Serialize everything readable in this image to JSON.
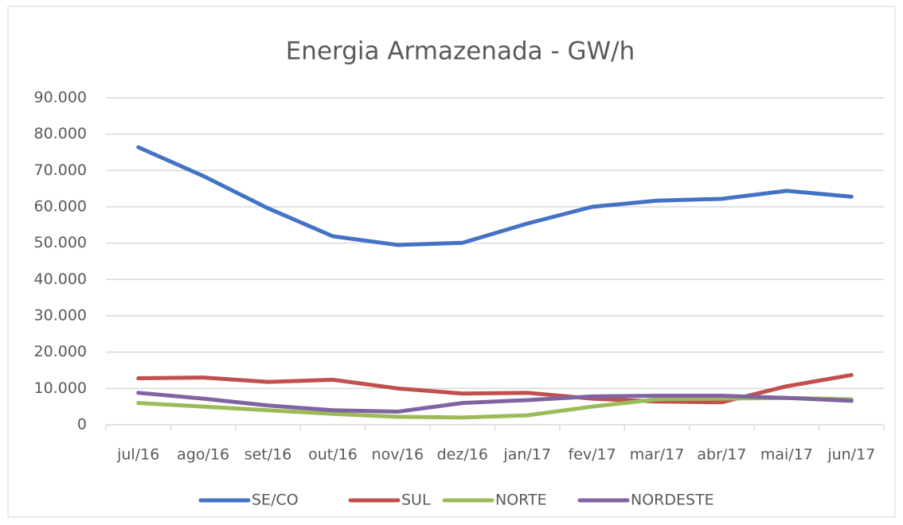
{
  "chart_data": {
    "type": "line",
    "title": "Energia Armazenada - GW/h",
    "categories": [
      "jul/16",
      "ago/16",
      "set/16",
      "out/16",
      "nov/16",
      "dez/16",
      "jan/17",
      "fev/17",
      "mar/17",
      "abr/17",
      "mai/17",
      "jun/17"
    ],
    "series": [
      {
        "name": "SE/CO",
        "color": "#4472c4",
        "values": [
          76400,
          68500,
          59600,
          51900,
          49500,
          50100,
          55400,
          60000,
          61700,
          62200,
          64400,
          62800
        ]
      },
      {
        "name": "SUL",
        "color": "#c0504d",
        "values": [
          12800,
          13000,
          11800,
          12400,
          10000,
          8600,
          8800,
          7200,
          6400,
          6200,
          10600,
          13700
        ]
      },
      {
        "name": "NORTE",
        "color": "#9bbb59",
        "values": [
          6000,
          5000,
          4000,
          3000,
          2200,
          2000,
          2600,
          5000,
          7000,
          7200,
          7400,
          7000
        ]
      },
      {
        "name": "NORDESTE",
        "color": "#8064a2",
        "values": [
          8800,
          7200,
          5300,
          4000,
          3600,
          6000,
          6800,
          7800,
          8000,
          8000,
          7400,
          6600
        ]
      }
    ],
    "ylim": [
      0,
      90000
    ],
    "yticks": [
      0,
      {
        "value": 10000,
        "label": "10.000"
      },
      {
        "value": 20000,
        "label": "20.000"
      },
      {
        "value": 30000,
        "label": "30.000"
      },
      {
        "value": 40000,
        "label": "40.000"
      },
      {
        "value": 50000,
        "label": "50.000"
      },
      {
        "value": 60000,
        "label": "60.000"
      },
      {
        "value": 70000,
        "label": "70.000"
      },
      {
        "value": 80000,
        "label": "80.000"
      },
      {
        "value": 90000,
        "label": "90.000"
      }
    ],
    "grid": true,
    "legend": "bottom"
  }
}
